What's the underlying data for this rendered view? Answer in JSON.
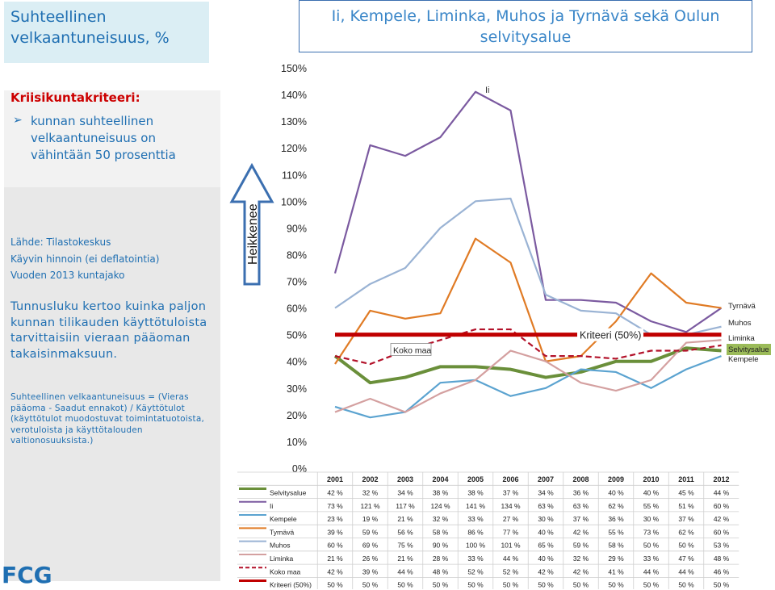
{
  "left_title": "Suhteellinen velkaantuneisuus, %",
  "criteria": {
    "heading": "Kriisikuntakriteeri:",
    "arrow": "➢",
    "text": "kunnan suhteellinen velkaantuneisuus on vähintään 50 prosenttia"
  },
  "source": {
    "line1": "Lähde: Tilastokeskus",
    "line2": "Käyvin hinnoin (ei deflatointia)",
    "line3": "Vuoden 2013 kuntajako"
  },
  "description": "Tunnusluku kertoo kuinka paljon kunnan tilikauden käyttötuloista tarvittaisiin vieraan pääoman takaisinmaksuun.",
  "formula": "Suhteellinen velkaantuneisuus = (Vieras pääoma - Saadut ennakot) / Käyttötulot (käyttötulot muodostuvat toimintatuotoista, verotuloista ja käyttötalouden valtionosuuksista.)",
  "logo": "FCG",
  "colors": {
    "Selvitysalue": "#6a8f3a",
    "Ii": "#7b5aa0",
    "Kempele": "#5ba3d0",
    "Tyrnävä": "#e07b25",
    "Muhos": "#9ab3d4",
    "Liminka": "#d4a0a0",
    "Koko maa": "#b3122a",
    "Kriteeri (50%)": "#c00000",
    "arrow": "#3b6fb0",
    "highlight_label_bg": "#9bbb59"
  },
  "chart_data": {
    "type": "line",
    "title": "Ii, Kempele, Liminka, Muhos ja Tyrnävä sekä Oulun selvitysalue",
    "x": [
      "2001",
      "2002",
      "2003",
      "2004",
      "2005",
      "2006",
      "2007",
      "2008",
      "2009",
      "2010",
      "2011",
      "2012"
    ],
    "ylim": [
      0,
      150
    ],
    "yticks": [
      "0%",
      "10%",
      "20%",
      "30%",
      "40%",
      "50%",
      "60%",
      "70%",
      "80%",
      "90%",
      "100%",
      "110%",
      "120%",
      "130%",
      "140%",
      "150%"
    ],
    "y_axis_note": "Heikkenee",
    "grid": false,
    "series": [
      {
        "name": "Selvitysalue",
        "values": [
          42,
          32,
          34,
          38,
          38,
          37,
          34,
          36,
          40,
          40,
          45,
          44
        ],
        "labels": [
          "42 %",
          "32 %",
          "34 %",
          "38 %",
          "38 %",
          "37 %",
          "34 %",
          "36 %",
          "40 %",
          "40 %",
          "45 %",
          "44 %"
        ]
      },
      {
        "name": "Ii",
        "values": [
          73,
          121,
          117,
          124,
          141,
          134,
          63,
          63,
          62,
          55,
          51,
          60
        ],
        "labels": [
          "73 %",
          "121 %",
          "117 %",
          "124 %",
          "141 %",
          "134 %",
          "63 %",
          "63 %",
          "62 %",
          "55 %",
          "51 %",
          "60 %"
        ]
      },
      {
        "name": "Kempele",
        "values": [
          23,
          19,
          21,
          32,
          33,
          27,
          30,
          37,
          36,
          30,
          37,
          42
        ],
        "labels": [
          "23 %",
          "19 %",
          "21 %",
          "32 %",
          "33 %",
          "27 %",
          "30 %",
          "37 %",
          "36 %",
          "30 %",
          "37 %",
          "42 %"
        ]
      },
      {
        "name": "Tyrnävä",
        "values": [
          39,
          59,
          56,
          58,
          86,
          77,
          40,
          42,
          55,
          73,
          62,
          60
        ],
        "labels": [
          "39 %",
          "59 %",
          "56 %",
          "58 %",
          "86 %",
          "77 %",
          "40 %",
          "42 %",
          "55 %",
          "73 %",
          "62 %",
          "60 %"
        ]
      },
      {
        "name": "Muhos",
        "values": [
          60,
          69,
          75,
          90,
          100,
          101,
          65,
          59,
          58,
          50,
          50,
          53
        ],
        "labels": [
          "60 %",
          "69 %",
          "75 %",
          "90 %",
          "100 %",
          "101 %",
          "65 %",
          "59 %",
          "58 %",
          "50 %",
          "50 %",
          "53 %"
        ]
      },
      {
        "name": "Liminka",
        "values": [
          21,
          26,
          21,
          28,
          33,
          44,
          40,
          32,
          29,
          33,
          47,
          48
        ],
        "labels": [
          "21 %",
          "26 %",
          "21 %",
          "28 %",
          "33 %",
          "44 %",
          "40 %",
          "32 %",
          "29 %",
          "33 %",
          "47 %",
          "48 %"
        ]
      },
      {
        "name": "Koko maa",
        "values": [
          42,
          39,
          44,
          48,
          52,
          52,
          42,
          42,
          41,
          44,
          44,
          46
        ],
        "labels": [
          "42 %",
          "39 %",
          "44 %",
          "48 %",
          "52 %",
          "52 %",
          "42 %",
          "42 %",
          "41 %",
          "44 %",
          "44 %",
          "46 %"
        ],
        "dashed": true
      },
      {
        "name": "Kriteeri (50%)",
        "values": [
          50,
          50,
          50,
          50,
          50,
          50,
          50,
          50,
          50,
          50,
          50,
          50
        ],
        "labels": [
          "50 %",
          "50 %",
          "50 %",
          "50 %",
          "50 %",
          "50 %",
          "50 %",
          "50 %",
          "50 %",
          "50 %",
          "50 %",
          "50 %"
        ],
        "thick": true
      }
    ],
    "annotations": [
      {
        "text": "Ii",
        "x": "2005",
        "y": 141
      },
      {
        "text": "Kriteeri (50%)",
        "x": "2009",
        "y": 50
      },
      {
        "text": "Koko maa",
        "x": "2003",
        "y": 44
      }
    ],
    "end_labels": [
      "Tyrnävä",
      "Muhos",
      "Liminka",
      "Selvitysalue",
      "Kempele"
    ],
    "legend": "table-below"
  }
}
